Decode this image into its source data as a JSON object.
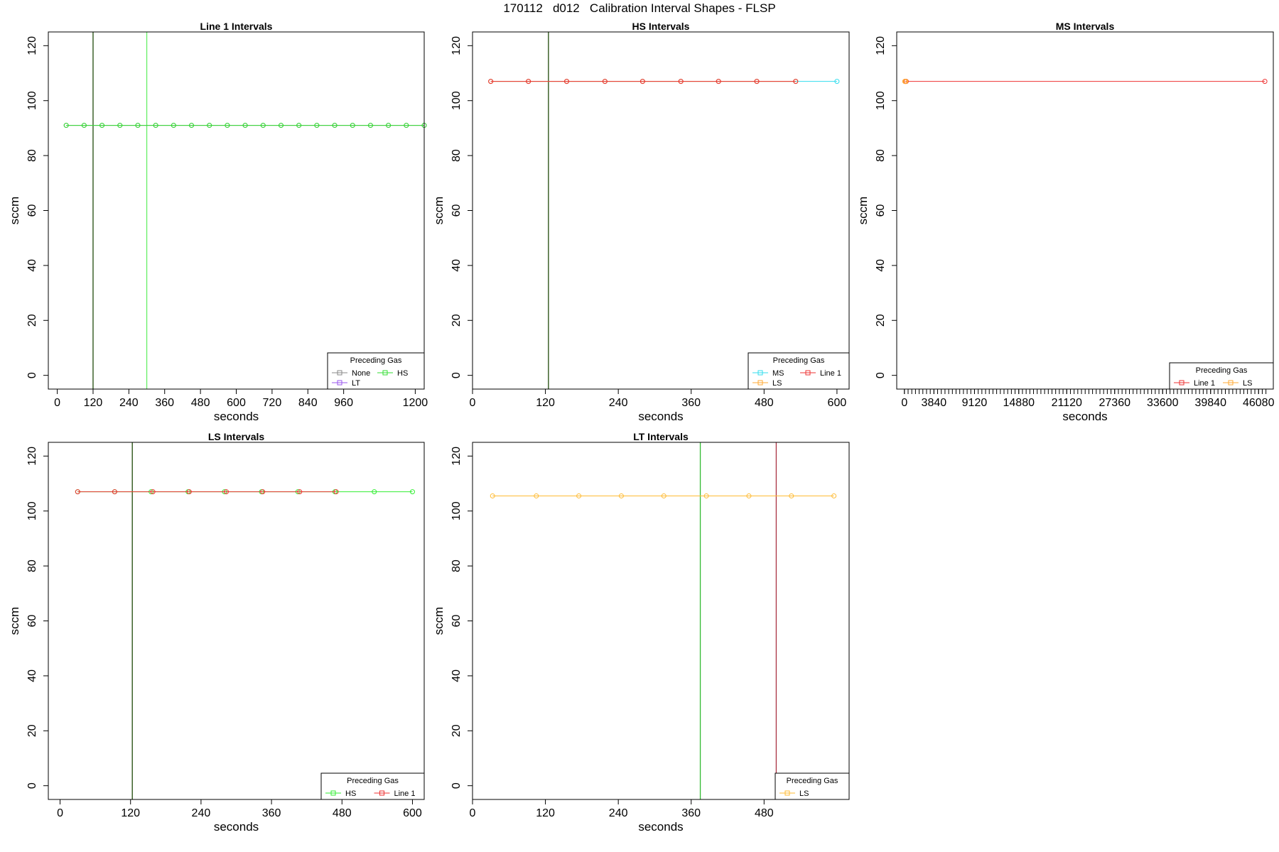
{
  "figure": {
    "title": "170112   d012   Calibration Interval Shapes - FLSP"
  },
  "chart_data": [
    {
      "type": "line",
      "title": "Line 1 Intervals",
      "xlabel": "seconds",
      "ylabel": "sccm",
      "xlim": [
        -30,
        1230
      ],
      "ylim": [
        -5,
        125
      ],
      "xticks": [
        0,
        120,
        240,
        360,
        480,
        600,
        720,
        840,
        960,
        1200
      ],
      "yticks": [
        0,
        20,
        40,
        60,
        80,
        100,
        120
      ],
      "vlines": [
        {
          "x": 120,
          "color": "#1f4a0a"
        },
        {
          "x": 300,
          "color": "#66ee66"
        }
      ],
      "series": [
        {
          "name": "None",
          "color": "#888888",
          "x": [
            30,
            90,
            150,
            210,
            270,
            330,
            390,
            450,
            510,
            570,
            630,
            690,
            750,
            810,
            870,
            930,
            990,
            1050,
            1110,
            1170,
            1230
          ],
          "y": [
            91,
            91,
            91,
            91,
            91,
            91,
            91,
            91,
            91,
            91,
            91,
            91,
            91,
            91,
            91,
            91,
            91,
            91,
            91,
            91,
            91
          ]
        },
        {
          "name": "LT",
          "color": "#9955ee",
          "x": [],
          "y": []
        },
        {
          "name": "HS",
          "color": "#33dd33",
          "x": [
            30,
            90,
            150,
            210,
            270,
            330,
            390,
            450,
            510,
            570,
            630,
            690,
            750,
            810,
            870,
            930,
            990,
            1050,
            1110,
            1170,
            1230
          ],
          "y": [
            91,
            91,
            91,
            91,
            91,
            91,
            91,
            91,
            91,
            91,
            91,
            91,
            91,
            91,
            91,
            91,
            91,
            91,
            91,
            91,
            91
          ]
        }
      ],
      "legend": {
        "title": "Preceding Gas",
        "position": "bottom-right",
        "columns": 2,
        "order": [
          0,
          2,
          1
        ]
      }
    },
    {
      "type": "line",
      "title": "HS Intervals",
      "xlabel": "seconds",
      "ylabel": "sccm",
      "xlim": [
        0,
        620
      ],
      "ylim": [
        -5,
        125
      ],
      "xticks": [
        0,
        120,
        240,
        360,
        480,
        600
      ],
      "yticks": [
        0,
        20,
        40,
        60,
        80,
        100,
        120
      ],
      "vlines": [
        {
          "x": 125,
          "color": "#1f4a0a"
        }
      ],
      "series": [
        {
          "name": "MS",
          "color": "#33ddee",
          "x": [
            30,
            92,
            155,
            218,
            280,
            343,
            405,
            468,
            532,
            600
          ],
          "y": [
            107,
            107,
            107,
            107,
            107,
            107,
            107,
            107,
            107,
            107
          ]
        },
        {
          "name": "LS",
          "color": "#ffaa33",
          "x": [
            30,
            92,
            155,
            218,
            280,
            343,
            405,
            468,
            532
          ],
          "y": [
            107,
            107,
            107,
            107,
            107,
            107,
            107,
            107,
            107
          ]
        },
        {
          "name": "Line 1",
          "color": "#ee3333",
          "x": [
            30,
            92,
            155,
            218,
            280,
            343,
            405,
            468,
            532
          ],
          "y": [
            107,
            107,
            107,
            107,
            107,
            107,
            107,
            107,
            107
          ]
        }
      ],
      "legend": {
        "title": "Preceding Gas",
        "position": "bottom-right",
        "columns": 2,
        "order": [
          0,
          2,
          1
        ]
      }
    },
    {
      "type": "line",
      "title": "MS Intervals",
      "xlabel": "seconds",
      "ylabel": "sccm",
      "xlim": [
        -1000,
        48000
      ],
      "ylim": [
        -5,
        125
      ],
      "xticks": [
        0,
        3840,
        9120,
        14880,
        21120,
        27360,
        33600,
        39840,
        46080
      ],
      "yticks": [
        0,
        20,
        40,
        60,
        80,
        100,
        120
      ],
      "minor_ticks": {
        "start": 0,
        "end": 47040,
        "step": 480
      },
      "vlines": [],
      "series": [
        {
          "name": "Line 1",
          "color": "#ee3333",
          "x": [
            60,
            120,
            180,
            240,
            46900
          ],
          "y": [
            107,
            107,
            107,
            107,
            107
          ]
        },
        {
          "name": "LS",
          "color": "#ffaa33",
          "x": [
            60,
            120,
            180
          ],
          "y": [
            107,
            107,
            107
          ]
        }
      ],
      "legend": {
        "title": "Preceding Gas",
        "position": "bottom-right",
        "columns": 2,
        "order": [
          0,
          1
        ]
      }
    },
    {
      "type": "line",
      "title": "LS Intervals",
      "xlabel": "seconds",
      "ylabel": "sccm",
      "xlim": [
        -20,
        620
      ],
      "ylim": [
        -5,
        125
      ],
      "xticks": [
        0,
        120,
        240,
        360,
        480,
        600
      ],
      "yticks": [
        0,
        20,
        40,
        60,
        80,
        100,
        120
      ],
      "vlines": [
        {
          "x": 123,
          "color": "#1f4a0a"
        }
      ],
      "series": [
        {
          "name": "HS",
          "color": "#33ee33",
          "x": [
            30,
            93,
            155,
            218,
            280,
            343,
            405,
            468,
            535,
            600
          ],
          "y": [
            107,
            107,
            107,
            107,
            107,
            107,
            107,
            107,
            107,
            107
          ]
        },
        {
          "name": "Line 1",
          "color": "#ee3333",
          "x": [
            30,
            93,
            158,
            220,
            283,
            345,
            408,
            470
          ],
          "y": [
            107,
            107,
            107,
            107,
            107,
            107,
            107,
            107
          ]
        }
      ],
      "legend": {
        "title": "Preceding Gas",
        "position": "bottom-right",
        "columns": 2,
        "order": [
          0,
          1
        ]
      }
    },
    {
      "type": "line",
      "title": "LT Intervals",
      "xlabel": "seconds",
      "ylabel": "sccm",
      "xlim": [
        0,
        620
      ],
      "ylim": [
        -5,
        125
      ],
      "xticks": [
        0,
        120,
        240,
        360,
        480
      ],
      "yticks": [
        0,
        20,
        40,
        60,
        80,
        100,
        120
      ],
      "vlines": [
        {
          "x": 375,
          "color": "#33bb33"
        },
        {
          "x": 500,
          "color": "#aa3344"
        }
      ],
      "series": [
        {
          "name": "LS",
          "color": "#ffbb33",
          "x": [
            33,
            105,
            175,
            245,
            315,
            385,
            455,
            525,
            595
          ],
          "y": [
            105.5,
            105.5,
            105.5,
            105.5,
            105.5,
            105.5,
            105.5,
            105.5,
            105.5
          ]
        }
      ],
      "legend": {
        "title": "Preceding Gas",
        "position": "bottom-right",
        "columns": 1,
        "order": [
          0
        ]
      }
    }
  ]
}
